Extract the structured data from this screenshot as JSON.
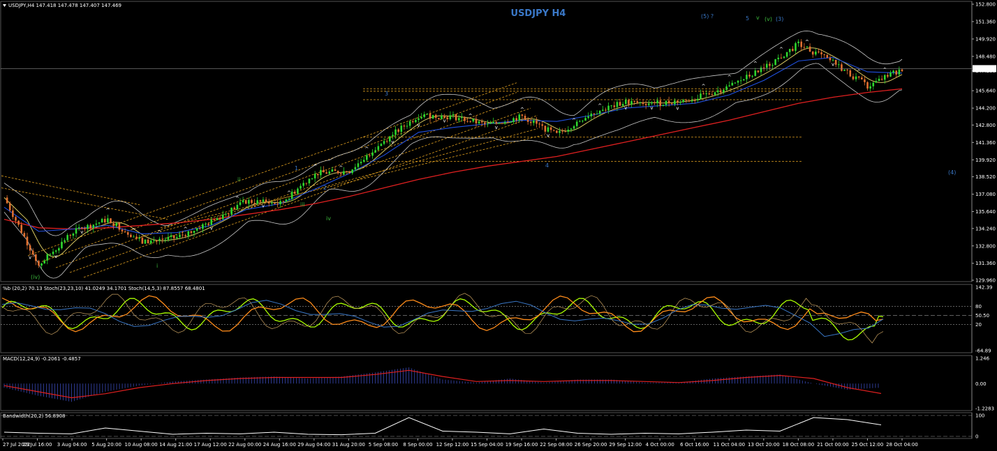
{
  "header": {
    "main": "USDJPY,H4  147.418 147.478 147.407 147.469",
    "title": "USDJPY H4",
    "percent_b": "%b (20,2) 70.13  Stoch(23,23,10) 41.0249 34.1701  Stoch(14,5,3) 87.8557 68.4801",
    "macd": "MACD(12,24,9) -0.2061 -0.4857",
    "bandwidth": "Bandwidth(20,2) 56.8908"
  },
  "colors": {
    "background": "#000000",
    "bull": "#2ed62e",
    "bear": "#e07030",
    "ema200": "#e02020",
    "ema_blue": "#2050e0",
    "ema_yellow": "#d8c860",
    "bands": "#c8c8c8",
    "fib_lines": "#e0a020",
    "wave_green": "#3cb83c",
    "wave_blue": "#3a78c8",
    "stoch_orange": "#ff8c1a",
    "lime": "#aaff00"
  },
  "price_axis": {
    "ticks": [
      "152.800",
      "151.360",
      "149.920",
      "148.480",
      "147.280",
      "145.640",
      "144.200",
      "142.800",
      "141.360",
      "139.920",
      "138.520",
      "137.080",
      "135.640",
      "134.240",
      "132.800",
      "131.360",
      "129.960"
    ],
    "last_price": "147.469"
  },
  "percent_b_axis": {
    "ticks": [
      "142.39",
      "80",
      "50.50",
      "20",
      "-64.89"
    ]
  },
  "macd_axis": {
    "ticks": [
      "1.246",
      "0.00",
      "-1.2283"
    ]
  },
  "bandwidth_axis": {
    "ticks": [
      "100",
      "0"
    ]
  },
  "time_axis": {
    "ticks": [
      "27 Jul 2022",
      "29 Jul 16:00",
      "3 Aug 04:00",
      "5 Aug 20:00",
      "10 Aug 08:00",
      "14 Aug 21:00",
      "17 Aug 12:00",
      "22 Aug 00:00",
      "24 Aug 16:00",
      "29 Aug 04:00",
      "31 Aug 20:00",
      "5 Sep 08:00",
      "8 Sep 00:00",
      "12 Sep 12:00",
      "15 Sep 04:00",
      "19 Sep 16:00",
      "22 Sep 08:00",
      "26 Sep 20:00",
      "29 Sep 12:00",
      "4 Oct 00:00",
      "6 Oct 16:00",
      "11 Oct 04:00",
      "13 Oct 20:00",
      "18 Oct 08:00",
      "21 Oct 00:00",
      "25 Oct 12:00",
      "28 Oct 04:00"
    ]
  },
  "wave_labels": {
    "iv_paren": "(iv)",
    "i": "i",
    "ii": "ii",
    "iii": "iii",
    "iv": "iv",
    "one": "1",
    "two": "2",
    "three": "3",
    "four": "4",
    "five_q": "(5) ?",
    "five": "5",
    "v": "v",
    "v_paren": "(v)",
    "three_paren": "(3)",
    "four_paren": "(4)"
  },
  "chart_data": [
    {
      "type": "candlestick",
      "title": "USDJPY H4",
      "ylim": [
        129.96,
        152.8
      ],
      "x": [
        "27 Jul",
        "29 Jul",
        "3 Aug",
        "5 Aug",
        "10 Aug",
        "14 Aug",
        "17 Aug",
        "22 Aug",
        "24 Aug",
        "29 Aug",
        "31 Aug",
        "5 Sep",
        "8 Sep",
        "12 Sep",
        "15 Sep",
        "19 Sep",
        "22 Sep",
        "26 Sep",
        "29 Sep",
        "4 Oct",
        "6 Oct",
        "11 Oct",
        "13 Oct",
        "18 Oct",
        "21 Oct",
        "25 Oct",
        "28 Oct"
      ],
      "close_path": [
        136.8,
        131.2,
        134.0,
        135.0,
        133.1,
        133.5,
        134.8,
        136.5,
        136.3,
        138.8,
        139.0,
        141.5,
        143.6,
        143.5,
        142.8,
        143.5,
        142.0,
        143.8,
        144.7,
        144.6,
        145.0,
        146.0,
        147.5,
        149.5,
        148.0,
        146.0,
        147.469
      ],
      "series": [
        {
          "name": "EMA 200",
          "values": [
            135.0,
            134.3,
            134.2,
            134.3,
            134.5,
            134.7,
            135.0,
            135.4,
            135.8,
            136.3,
            136.9,
            137.6,
            138.3,
            138.9,
            139.4,
            139.8,
            140.2,
            140.8,
            141.4,
            142.0,
            142.6,
            143.2,
            143.9,
            144.6,
            145.1,
            145.5,
            145.8
          ]
        },
        {
          "name": "EMA blue",
          "values": [
            136.0,
            134.0,
            134.2,
            134.5,
            133.8,
            133.9,
            134.5,
            135.8,
            136.3,
            137.5,
            138.8,
            140.3,
            142.2,
            142.6,
            142.9,
            143.2,
            143.1,
            143.6,
            144.2,
            144.4,
            144.6,
            145.3,
            146.5,
            148.1,
            148.4,
            147.2,
            147.1
          ]
        }
      ],
      "price_levels": [
        145.8,
        145.6,
        144.9,
        139.8,
        141.8
      ]
    },
    {
      "type": "line",
      "title": "%b (20,2) 70.13  Stoch(23,23,10) 41.0249 34.1701  Stoch(14,5,3) 87.8557 68.4801",
      "ylim": [
        -64.89,
        142.39
      ],
      "levels": [
        80,
        50.5,
        20
      ]
    },
    {
      "type": "bar",
      "title": "MACD(12,24,9) -0.2061 -0.4857",
      "ylim": [
        -1.2283,
        1.246
      ],
      "histogram": [
        -0.2,
        -0.6,
        -0.9,
        -0.4,
        -0.1,
        0.1,
        0.2,
        0.3,
        0.35,
        0.25,
        0.35,
        0.55,
        0.8,
        0.2,
        0.05,
        0.25,
        0.05,
        0.2,
        0.2,
        0.05,
        0.05,
        0.25,
        0.35,
        0.45,
        0.0,
        -0.3,
        -0.2
      ],
      "signal": [
        -0.1,
        -0.4,
        -0.7,
        -0.5,
        -0.2,
        0.0,
        0.15,
        0.25,
        0.3,
        0.3,
        0.3,
        0.45,
        0.65,
        0.35,
        0.1,
        0.15,
        0.1,
        0.15,
        0.15,
        0.1,
        0.05,
        0.15,
        0.3,
        0.4,
        0.25,
        -0.2,
        -0.49
      ]
    },
    {
      "type": "line",
      "title": "Bandwidth(20,2) 56.8908",
      "ylim": [
        0,
        100
      ],
      "values": [
        20,
        15,
        12,
        40,
        25,
        10,
        15,
        12,
        20,
        10,
        8,
        15,
        90,
        25,
        20,
        12,
        35,
        15,
        10,
        15,
        12,
        20,
        30,
        25,
        90,
        80,
        55
      ]
    }
  ]
}
